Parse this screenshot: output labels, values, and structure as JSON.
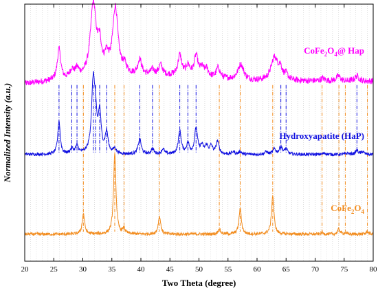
{
  "chart_data": {
    "type": "line",
    "xlabel": "Two Theta (degree)",
    "ylabel": "Normalized Intensity (a.u.)",
    "xlim": [
      20,
      80
    ],
    "x_ticks": [
      20,
      25,
      30,
      35,
      40,
      45,
      50,
      55,
      60,
      65,
      70,
      75,
      80
    ],
    "x_minor_step": 1,
    "grid": "vertical dotted at every degree",
    "legend": "none (series labeled directly on plot)",
    "y_ticks_labeled": false,
    "series": [
      {
        "name": "CoFe2O4@ Hap",
        "label_parts": [
          "CoFe",
          "2",
          "O",
          "4",
          "@ Hap"
        ],
        "color": "#ff00ff",
        "baseline": 0.69,
        "noise": 0.012,
        "background": [
          [
            20,
            0.0
          ],
          [
            30,
            0.02
          ],
          [
            35,
            0.03
          ],
          [
            45,
            0.03
          ],
          [
            60,
            0.01
          ],
          [
            80,
            0.01
          ]
        ],
        "peaks": [
          [
            25.9,
            0.12,
            0.35
          ],
          [
            28.1,
            0.03,
            0.4
          ],
          [
            29.0,
            0.03,
            0.4
          ],
          [
            31.8,
            0.28,
            0.6
          ],
          [
            32.9,
            0.1,
            0.4
          ],
          [
            34.1,
            0.06,
            0.4
          ],
          [
            35.6,
            0.26,
            0.55
          ],
          [
            37.2,
            0.03,
            0.4
          ],
          [
            39.8,
            0.06,
            0.4
          ],
          [
            42.0,
            0.02,
            0.4
          ],
          [
            43.4,
            0.04,
            0.4
          ],
          [
            46.7,
            0.08,
            0.4
          ],
          [
            48.1,
            0.04,
            0.4
          ],
          [
            49.5,
            0.08,
            0.4
          ],
          [
            50.5,
            0.03,
            0.4
          ],
          [
            51.3,
            0.03,
            0.4
          ],
          [
            53.3,
            0.04,
            0.4
          ],
          [
            57.2,
            0.06,
            0.6
          ],
          [
            63.0,
            0.09,
            0.7
          ],
          [
            64.0,
            0.04,
            0.4
          ],
          [
            65.0,
            0.02,
            0.4
          ],
          [
            71.3,
            0.01,
            0.4
          ],
          [
            74.0,
            0.02,
            0.4
          ],
          [
            77.2,
            0.02,
            0.4
          ]
        ]
      },
      {
        "name": "Hydroxyapatite (HaP)",
        "color": "#1010e0",
        "baseline": 0.415,
        "noise": 0.006,
        "background": [],
        "peaks": [
          [
            25.9,
            0.13,
            0.25
          ],
          [
            28.1,
            0.02,
            0.3
          ],
          [
            29.0,
            0.03,
            0.3
          ],
          [
            31.8,
            0.28,
            0.35
          ],
          [
            32.2,
            0.09,
            0.25
          ],
          [
            32.9,
            0.15,
            0.3
          ],
          [
            34.1,
            0.08,
            0.3
          ],
          [
            35.5,
            0.02,
            0.3
          ],
          [
            39.8,
            0.06,
            0.3
          ],
          [
            42.0,
            0.02,
            0.3
          ],
          [
            43.8,
            0.02,
            0.3
          ],
          [
            46.7,
            0.09,
            0.3
          ],
          [
            48.1,
            0.04,
            0.3
          ],
          [
            49.5,
            0.1,
            0.3
          ],
          [
            50.5,
            0.03,
            0.3
          ],
          [
            51.3,
            0.03,
            0.3
          ],
          [
            52.1,
            0.03,
            0.3
          ],
          [
            53.2,
            0.05,
            0.3
          ],
          [
            55.9,
            0.01,
            0.3
          ],
          [
            57.1,
            0.01,
            0.3
          ],
          [
            61.6,
            0.01,
            0.3
          ],
          [
            63.0,
            0.02,
            0.3
          ],
          [
            64.1,
            0.03,
            0.3
          ],
          [
            65.0,
            0.02,
            0.3
          ],
          [
            71.6,
            0.005,
            0.3
          ],
          [
            75.6,
            0.005,
            0.3
          ],
          [
            77.2,
            0.015,
            0.3
          ],
          [
            78.2,
            0.01,
            0.3
          ]
        ]
      },
      {
        "name": "CoFe2O4",
        "label_parts": [
          "CoFe",
          "2",
          "O",
          "4",
          ""
        ],
        "color": "#f28c1e",
        "baseline": 0.105,
        "noise": 0.006,
        "background": [],
        "peaks": [
          [
            30.1,
            0.08,
            0.25
          ],
          [
            35.5,
            0.31,
            0.25
          ],
          [
            37.1,
            0.02,
            0.25
          ],
          [
            43.2,
            0.07,
            0.25
          ],
          [
            53.5,
            0.02,
            0.25
          ],
          [
            57.1,
            0.1,
            0.25
          ],
          [
            62.7,
            0.15,
            0.25
          ],
          [
            71.2,
            0.005,
            0.25
          ],
          [
            74.1,
            0.02,
            0.25
          ],
          [
            75.2,
            0.005,
            0.25
          ],
          [
            79.0,
            0.01,
            0.25
          ]
        ]
      }
    ],
    "reference_lines": {
      "hap": {
        "color": "#1010e0",
        "style": "dash-dot",
        "positions": [
          25.9,
          28.1,
          29.0,
          31.8,
          32.2,
          32.9,
          34.1,
          39.8,
          42.0,
          46.7,
          48.1,
          49.5,
          64.1,
          65.0,
          77.2
        ]
      },
      "cofe2o4": {
        "color": "#f28c1e",
        "style": "dash-dot",
        "positions": [
          30.1,
          35.5,
          37.1,
          43.2,
          53.5,
          57.1,
          62.7,
          71.2,
          74.1,
          75.2,
          79.0
        ]
      }
    }
  }
}
